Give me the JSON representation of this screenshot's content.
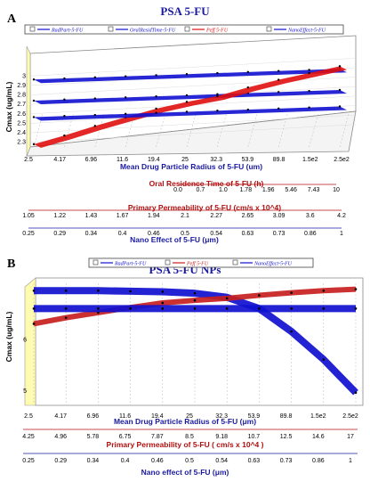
{
  "chart_data": [
    {
      "type": "line",
      "panel_label": "A",
      "title": "PSA 5-FU",
      "ylabel": "Cmax (ug/mL)",
      "ylim": [
        2.25,
        3.05
      ],
      "yticks": [
        "3",
        "2.9",
        "2.8",
        "2.7",
        "2.6",
        "2.5",
        "2.4",
        "2.3"
      ],
      "legend": [
        "RadPart-5-FU",
        "OralResidTime-5-FU",
        "Peff 5-FU",
        "NanoEffect-5-FU"
      ],
      "axes": [
        {
          "label": "Mean Drug Particle Radius of 5-FU (um)",
          "color": "#1a1aa0",
          "ticks": [
            "2.5",
            "4.17",
            "6.96",
            "11.6",
            "19.4",
            "25",
            "32.3",
            "53.9",
            "89.8",
            "1.5e2",
            "2.5e2"
          ]
        },
        {
          "label": "Oral Residence Time of 5-FU (h)",
          "color": "#b01010",
          "ticks": [
            "0.0",
            "0.7",
            "1.0",
            "1.78",
            "1.96",
            "5.46",
            "7.43",
            "10"
          ]
        },
        {
          "label": "Primary Permeability of 5-FU (cm/s x 10^4)",
          "color": "#b01010",
          "ticks": [
            "1.05",
            "1.22",
            "1.43",
            "1.67",
            "1.94",
            "2.1",
            "2.27",
            "2.65",
            "3.09",
            "3.6",
            "4.2"
          ]
        },
        {
          "label": "Nano Effect of 5-FU (μm)",
          "color": "#1a1aa0",
          "ticks": [
            "0.25",
            "0.29",
            "0.34",
            "0.4",
            "0.46",
            "0.5",
            "0.54",
            "0.63",
            "0.73",
            "0.86",
            "1"
          ]
        }
      ],
      "series": [
        {
          "name": "RadPart-5-FU",
          "color": "#1010d0",
          "values": [
            2.85,
            2.85,
            2.85,
            2.85,
            2.85,
            2.85,
            2.85,
            2.85,
            2.85,
            2.85,
            2.85
          ]
        },
        {
          "name": "OralResidTime-5-FU",
          "color": "#1010d0",
          "values": [
            2.74,
            2.74,
            2.74,
            2.74,
            2.74,
            2.74,
            2.74,
            2.74,
            2.74,
            2.74,
            2.74
          ]
        },
        {
          "name": "Peff 5-FU",
          "color": "#e01010",
          "values": [
            2.28,
            2.36,
            2.45,
            2.53,
            2.61,
            2.67,
            2.72,
            2.8,
            2.87,
            2.93,
            2.99
          ]
        },
        {
          "name": "NanoEffect-5-FU",
          "color": "#1010d0",
          "values": [
            2.66,
            2.66,
            2.66,
            2.66,
            2.66,
            2.66,
            2.66,
            2.66,
            2.66,
            2.66,
            2.66
          ]
        }
      ]
    },
    {
      "type": "line",
      "panel_label": "B",
      "title": "PSA 5-FU NPs",
      "ylabel": "Cmax (ug/mL)",
      "ylim": [
        4.7,
        7.2
      ],
      "yticks": [
        "6",
        "5"
      ],
      "legend": [
        "RadPart-5-FU",
        "Peff 5-FU",
        "NanoEffect-5-FU"
      ],
      "axes": [
        {
          "label": "Mean Drug Particle Radius of 5-FU (μm)",
          "color": "#1a1aa0",
          "ticks": [
            "2.5",
            "4.17",
            "6.96",
            "11.6",
            "19.4",
            "25",
            "32.3",
            "53.9",
            "89.8",
            "1.5e2",
            "2.5e2"
          ]
        },
        {
          "label": "Primary Permeability of 5-FU ( cm/s x 10^4 )",
          "color": "#b01010",
          "ticks": [
            "4.25",
            "4.96",
            "5.78",
            "6.75",
            "7.87",
            "8.5",
            "9.18",
            "10.7",
            "12.5",
            "14.6",
            "17"
          ]
        },
        {
          "label": "Nano effect of 5-FU (μm)",
          "color": "#1a1aa0",
          "ticks": [
            "0.25",
            "0.29",
            "0.34",
            "0.4",
            "0.46",
            "0.5",
            "0.54",
            "0.63",
            "0.73",
            "0.86",
            "1"
          ]
        }
      ],
      "series": [
        {
          "name": "RadPart-5-FU",
          "color": "#1010d0",
          "values": [
            6.95,
            6.95,
            6.95,
            6.94,
            6.93,
            6.9,
            6.82,
            6.6,
            6.15,
            5.6,
            4.95
          ]
        },
        {
          "name": "Peff 5-FU",
          "color": "#c82020",
          "values": [
            6.3,
            6.42,
            6.52,
            6.62,
            6.71,
            6.76,
            6.8,
            6.86,
            6.91,
            6.95,
            6.98
          ]
        },
        {
          "name": "NanoEffect-5-FU",
          "color": "#1010d0",
          "values": [
            6.6,
            6.6,
            6.6,
            6.6,
            6.6,
            6.6,
            6.6,
            6.6,
            6.6,
            6.6,
            6.6
          ]
        }
      ]
    }
  ]
}
